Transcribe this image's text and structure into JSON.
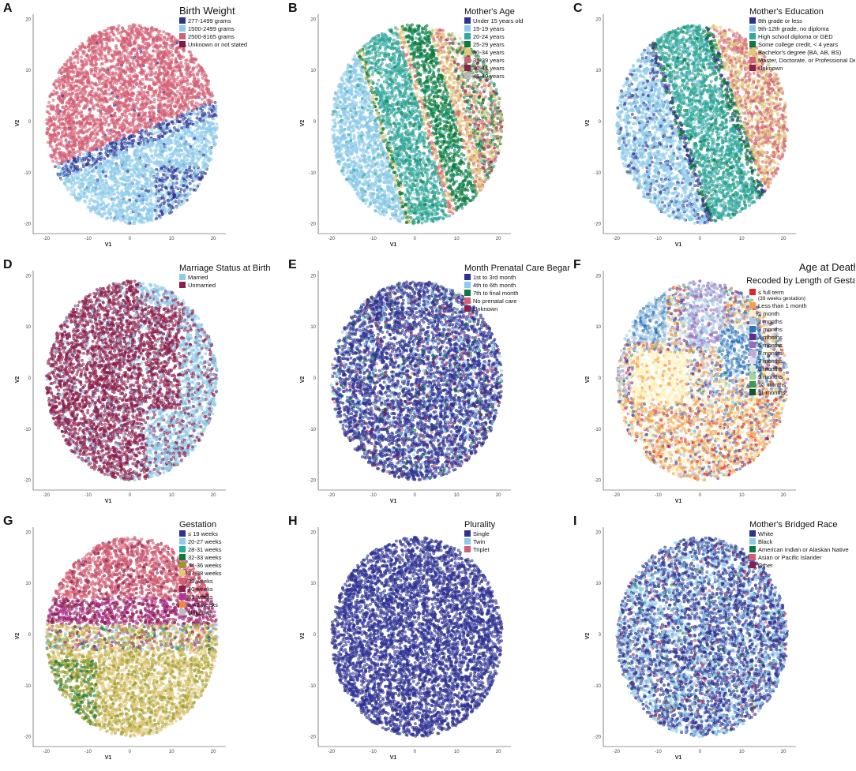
{
  "axes": {
    "xlabel": "V1",
    "ylabel": "V2",
    "xticks": [
      "-20",
      "-10",
      "0",
      "10",
      "20"
    ],
    "yticks": [
      "20",
      "10",
      "0",
      "-10",
      "-20"
    ],
    "xlim": [
      -22,
      23
    ],
    "ylim": [
      -21,
      21
    ]
  },
  "chart_data": [
    {
      "panel": "A",
      "type": "scatter",
      "title": "Birth Weight",
      "legend": [
        {
          "label": "277-1499 grams",
          "color": "#2e3192"
        },
        {
          "label": "1500-2499 grams",
          "color": "#8ecbea"
        },
        {
          "label": "2500-8165 grams",
          "color": "#d45f75"
        },
        {
          "label": "Unknown or not stated",
          "color": "#7b1a44"
        }
      ]
    },
    {
      "panel": "B",
      "type": "scatter",
      "title": "Mother's Age",
      "legend": [
        {
          "label": "Under 15 years old",
          "color": "#2e3192"
        },
        {
          "label": "15-19 years",
          "color": "#8ecbea"
        },
        {
          "label": "20-24 years",
          "color": "#2fa79a"
        },
        {
          "label": "25-29 years",
          "color": "#0b7a3a"
        },
        {
          "label": "30-34 years",
          "color": "#e0c878"
        },
        {
          "label": "35-39 years",
          "color": "#d45f75"
        },
        {
          "label": "40-44 years",
          "color": "#8c1e4a"
        },
        {
          "label": "45-49 years",
          "color": "#b8b8b8"
        }
      ]
    },
    {
      "panel": "C",
      "type": "scatter",
      "title": "Mother's Education",
      "legend": [
        {
          "label": "8th grade or less",
          "color": "#2e3192"
        },
        {
          "label": "9th-12th grade, no diploma",
          "color": "#8ecbea"
        },
        {
          "label": "High school diploma or GED",
          "color": "#2fa79a"
        },
        {
          "label": "Some college credit, < 4 years",
          "color": "#0b7a3a"
        },
        {
          "label": "Bachelor's degree (BA, AB, BS)",
          "color": "#e0c878"
        },
        {
          "label": "Master, Doctorate, or Professional Degree",
          "color": "#d45f75"
        },
        {
          "label": "Unknown",
          "color": "#8c1e4a"
        }
      ]
    },
    {
      "panel": "D",
      "type": "scatter",
      "title": "Marriage Status at Birth",
      "legend": [
        {
          "label": "Married",
          "color": "#8ecbea"
        },
        {
          "label": "Unmarried",
          "color": "#8c1e4a"
        }
      ]
    },
    {
      "panel": "E",
      "type": "scatter",
      "title": "Month Prenatal Care Began",
      "legend": [
        {
          "label": "1st to 3rd month",
          "color": "#2e3192"
        },
        {
          "label": "4th to 6th month",
          "color": "#8ecbea"
        },
        {
          "label": "7th to final month",
          "color": "#0b7a3a"
        },
        {
          "label": "No prenatal care",
          "color": "#d45f75"
        },
        {
          "label": "Unknown",
          "color": "#8c1e4a"
        }
      ]
    },
    {
      "panel": "F",
      "type": "scatter",
      "title": "Age at Death-",
      "subtitle": "Recoded by Length of Gestation",
      "legend": [
        {
          "label": "≤ full term",
          "note": "(39 weeks gestation)",
          "color": "#e4252b"
        },
        {
          "label": "Less than 1 month",
          "color": "#f5a04a"
        },
        {
          "label": "1 month",
          "color": "#fbf3c0"
        },
        {
          "label": "2 months",
          "color": "#a8cbe6"
        },
        {
          "label": "3 months",
          "color": "#2f73b6"
        },
        {
          "label": "4 months",
          "color": "#6a2a8a"
        },
        {
          "label": "5 months",
          "color": "#9a6cb8"
        },
        {
          "label": "6 months",
          "color": "#c3a8d6"
        },
        {
          "label": "7 months",
          "color": "#e8dcea"
        },
        {
          "label": "8 months",
          "color": "#d8ecd2"
        },
        {
          "label": "9 months",
          "color": "#a5d494"
        },
        {
          "label": "10 months",
          "color": "#3c9a48"
        },
        {
          "label": "11 months",
          "color": "#0f5a2a"
        }
      ]
    },
    {
      "panel": "G",
      "type": "scatter",
      "title": "Gestation",
      "legend": [
        {
          "label": "≤ 19 weeks",
          "color": "#2e3192"
        },
        {
          "label": "20-27 weeks",
          "color": "#8ecbea"
        },
        {
          "label": "28-31 weeks",
          "color": "#2fa79a"
        },
        {
          "label": "32-33 weeks",
          "color": "#0b7a3a"
        },
        {
          "label": "34-36 weeks",
          "color": "#9a9a2a"
        },
        {
          "label": "37-38 weeks",
          "color": "#e0c878"
        },
        {
          "label": "39 weeks",
          "color": "#d45f75"
        },
        {
          "label": "40 weeks",
          "color": "#8c1e4a"
        },
        {
          "label": "41 weeks",
          "color": "#b0329a"
        },
        {
          "label": "≥ 42 weeks",
          "color": "#f08a3a"
        },
        {
          "label": "Unknown",
          "color": "#bdbdbd"
        }
      ]
    },
    {
      "panel": "H",
      "type": "scatter",
      "title": "Plurality",
      "legend": [
        {
          "label": "Single",
          "color": "#2e3192"
        },
        {
          "label": "Twin",
          "color": "#8ecbea"
        },
        {
          "label": "Triplet",
          "color": "#d45f75"
        }
      ]
    },
    {
      "panel": "I",
      "type": "scatter",
      "title": "Mother's Bridged Race",
      "legend": [
        {
          "label": "White",
          "color": "#2e3192"
        },
        {
          "label": "Black",
          "color": "#8ecbea"
        },
        {
          "label": "American Indian or Alaskan Native",
          "color": "#0b7a3a"
        },
        {
          "label": "Asian or Pacific Islander",
          "color": "#d45f75"
        },
        {
          "label": "Other",
          "color": "#8c1e4a"
        }
      ]
    }
  ]
}
